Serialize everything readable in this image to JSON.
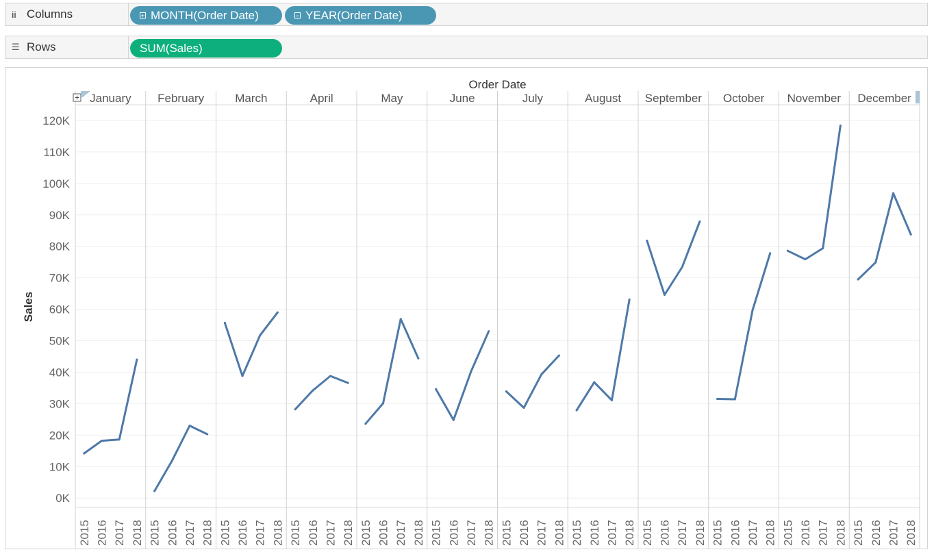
{
  "columns_shelf": {
    "label": "Columns",
    "icon": "columns-icon",
    "pills": [
      {
        "label": "MONTH(Order Date)",
        "icon": "expand-plus-icon",
        "color": "#4a97b4"
      },
      {
        "label": "YEAR(Order Date)",
        "icon": "collapse-minus-icon",
        "color": "#4a97b4"
      }
    ]
  },
  "rows_shelf": {
    "label": "Rows",
    "icon": "rows-icon",
    "pills": [
      {
        "label": "SUM(Sales)",
        "color": "#0db07c"
      }
    ]
  },
  "chart_data": {
    "type": "line",
    "title": "Order Date",
    "ylabel": "Sales",
    "ylim": [
      -3000,
      125000
    ],
    "y_ticks": [
      0,
      10000,
      20000,
      30000,
      40000,
      50000,
      60000,
      70000,
      80000,
      90000,
      100000,
      110000,
      120000
    ],
    "y_tick_labels": [
      "0K",
      "10K",
      "20K",
      "30K",
      "40K",
      "50K",
      "60K",
      "70K",
      "80K",
      "90K",
      "100K",
      "110K",
      "120K"
    ],
    "line_color": "#4e79a7",
    "months": [
      "January",
      "February",
      "March",
      "April",
      "May",
      "June",
      "July",
      "August",
      "September",
      "October",
      "November",
      "December"
    ],
    "years": [
      "2015",
      "2016",
      "2017",
      "2018"
    ],
    "series": [
      {
        "month": "January",
        "values": [
          14200,
          18200,
          18600,
          44000
        ]
      },
      {
        "month": "February",
        "values": [
          2200,
          11900,
          23000,
          20300
        ]
      },
      {
        "month": "March",
        "values": [
          55700,
          38800,
          51700,
          59000
        ]
      },
      {
        "month": "April",
        "values": [
          28200,
          34200,
          38800,
          36600
        ]
      },
      {
        "month": "May",
        "values": [
          23600,
          30100,
          56900,
          44400
        ]
      },
      {
        "month": "June",
        "values": [
          34600,
          24800,
          40300,
          53000
        ]
      },
      {
        "month": "July",
        "values": [
          33900,
          28700,
          39300,
          45300
        ]
      },
      {
        "month": "August",
        "values": [
          27900,
          36800,
          31100,
          63100
        ]
      },
      {
        "month": "September",
        "values": [
          81800,
          64600,
          73400,
          87900
        ]
      },
      {
        "month": "October",
        "values": [
          31500,
          31400,
          59700,
          77800
        ]
      },
      {
        "month": "November",
        "values": [
          78600,
          75900,
          79400,
          118400
        ]
      },
      {
        "month": "December",
        "values": [
          69500,
          74900,
          96900,
          83800
        ]
      }
    ]
  }
}
